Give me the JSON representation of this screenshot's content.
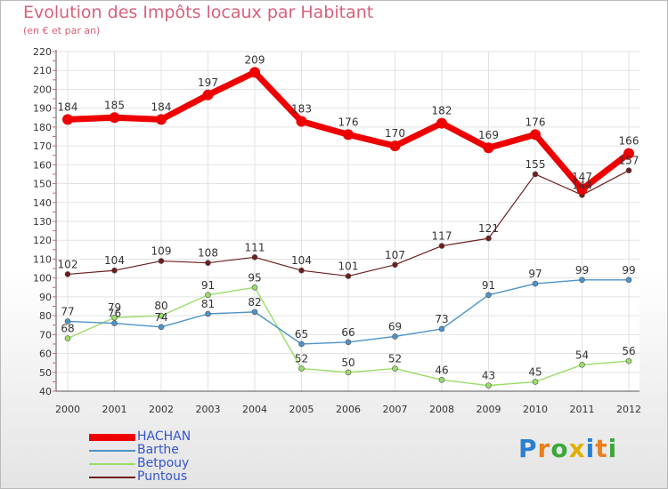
{
  "chart_data": {
    "type": "line",
    "title": "Evolution des Impôts locaux par Habitant",
    "subtitle": "(en € et par an)",
    "categories": [
      "2000",
      "2001",
      "2002",
      "2003",
      "2004",
      "2005",
      "2006",
      "2007",
      "2008",
      "2009",
      "2010",
      "2011",
      "2012"
    ],
    "ylim": [
      40,
      220
    ],
    "y_ticks": [
      40,
      50,
      60,
      70,
      80,
      90,
      100,
      110,
      120,
      130,
      140,
      150,
      160,
      170,
      180,
      190,
      200,
      210,
      220
    ],
    "grid": true,
    "legend_position": "bottom-left",
    "series": [
      {
        "name": "HACHAN",
        "color": "#ee0000",
        "values": [
          184,
          185,
          184,
          197,
          209,
          183,
          176,
          170,
          182,
          169,
          176,
          147,
          166
        ]
      },
      {
        "name": "Barthe",
        "color": "#4d93c8",
        "values": [
          77,
          76,
          74,
          81,
          82,
          65,
          66,
          69,
          73,
          91,
          97,
          99,
          99
        ]
      },
      {
        "name": "Betpouy",
        "color": "#99dd66",
        "values": [
          68,
          79,
          80,
          91,
          95,
          52,
          50,
          52,
          46,
          43,
          45,
          54,
          56
        ]
      },
      {
        "name": "Puntous",
        "color": "#6b1e1e",
        "values": [
          102,
          104,
          109,
          108,
          111,
          104,
          101,
          107,
          117,
          121,
          155,
          144,
          157
        ]
      }
    ],
    "value_labels": [
      [
        "184",
        "185",
        "184",
        "197",
        "209",
        "183",
        "176",
        "170",
        "182",
        "169",
        "176",
        "147",
        "166"
      ],
      [
        "77",
        "76",
        "74",
        "81",
        "82",
        "65",
        "66",
        "69",
        "73",
        "91",
        "97",
        "99",
        "99"
      ],
      [
        "68",
        "79",
        "80",
        "91",
        "95",
        "52",
        "50",
        "52",
        "46",
        "43",
        "45",
        "54",
        "56"
      ],
      [
        "102",
        "104",
        "109",
        "108",
        "111",
        "104",
        "101",
        "107",
        "117",
        "121",
        "155",
        "144",
        "157"
      ]
    ]
  },
  "legend": {
    "items": [
      {
        "label": "HACHAN",
        "color": "#ee0000"
      },
      {
        "label": "Barthe",
        "color": "#4d93c8"
      },
      {
        "label": "Betpouy",
        "color": "#99dd66"
      },
      {
        "label": "Puntous",
        "color": "#6b1e1e"
      }
    ],
    "text_color": "#3355cc"
  },
  "logo": {
    "letters": [
      "P",
      "r",
      "o",
      "x",
      "i",
      "t",
      "i"
    ],
    "colors": [
      "#2a7fd0",
      "#e8801e",
      "#3aa83a",
      "#e0b000",
      "#2a7fd0",
      "#e8801e",
      "#3aa83a"
    ]
  }
}
